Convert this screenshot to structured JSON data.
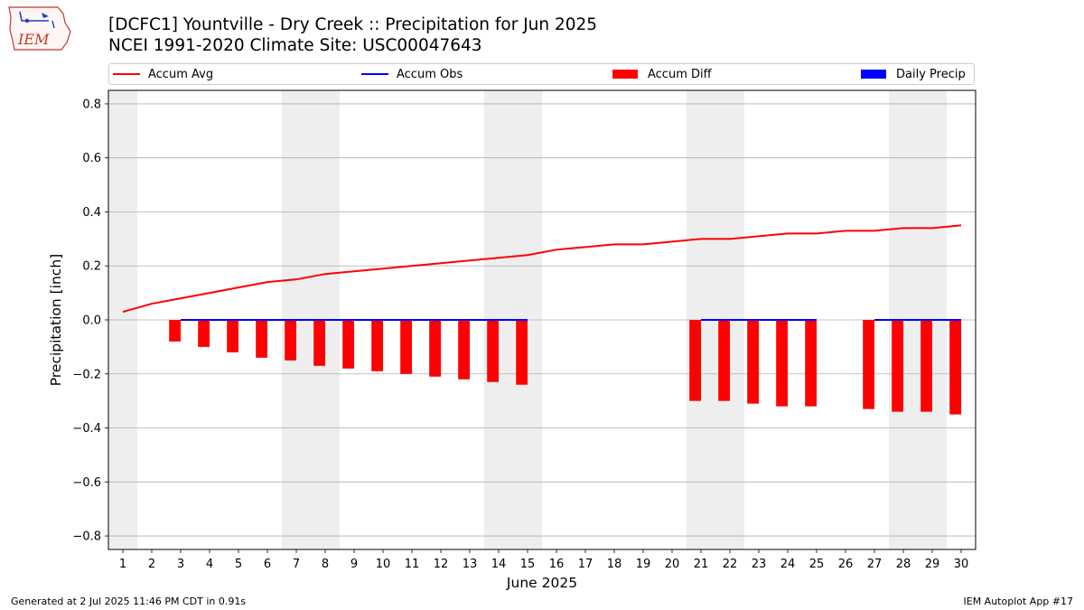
{
  "logo": {
    "text": "IEM"
  },
  "title": {
    "line1": "[DCFC1] Yountville - Dry Creek :: Precipitation for Jun 2025",
    "line2": "NCEI 1991-2020 Climate Site: USC00047643"
  },
  "legend": {
    "accum_avg": "Accum Avg",
    "accum_obs": "Accum Obs",
    "accum_diff": "Accum Diff",
    "daily_precip": "Daily Precip"
  },
  "footer": {
    "left": "Generated at 2 Jul 2025 11:46 PM CDT in 0.91s",
    "right": "IEM Autoplot App #17"
  },
  "colors": {
    "accum_avg": "#ff0000",
    "accum_obs": "#0000ff",
    "accum_diff": "#ff0000",
    "daily_precip": "#0000ff",
    "weekend_band": "#eeeeee",
    "grid": "#b0b0b0"
  },
  "chart_data": {
    "type": "bar",
    "xlabel": "June 2025",
    "ylabel": "Precipitation [inch]",
    "xlim": [
      0.5,
      30.5
    ],
    "ylim": [
      -0.85,
      0.85
    ],
    "yticks": [
      -0.8,
      -0.6,
      -0.4,
      -0.2,
      0.0,
      0.2,
      0.4,
      0.6,
      0.8
    ],
    "ytick_labels": [
      "−0.8",
      "−0.6",
      "−0.4",
      "−0.2",
      "0.0",
      "0.2",
      "0.4",
      "0.6",
      "0.8"
    ],
    "days": [
      1,
      2,
      3,
      4,
      5,
      6,
      7,
      8,
      9,
      10,
      11,
      12,
      13,
      14,
      15,
      16,
      17,
      18,
      19,
      20,
      21,
      22,
      23,
      24,
      25,
      26,
      27,
      28,
      29,
      30
    ],
    "grid": true,
    "legend_position": "top",
    "weekend_days": [
      1,
      7,
      8,
      14,
      15,
      21,
      22,
      28,
      29
    ],
    "series": [
      {
        "name": "Accum Avg",
        "kind": "line",
        "x": [
          1,
          2,
          3,
          4,
          5,
          6,
          7,
          8,
          9,
          10,
          11,
          12,
          13,
          14,
          15,
          16,
          17,
          18,
          19,
          20,
          21,
          22,
          23,
          24,
          25,
          26,
          27,
          28,
          29,
          30
        ],
        "values": [
          0.03,
          0.06,
          0.08,
          0.1,
          0.12,
          0.14,
          0.15,
          0.17,
          0.18,
          0.19,
          0.2,
          0.21,
          0.22,
          0.23,
          0.24,
          0.26,
          0.27,
          0.28,
          0.28,
          0.29,
          0.3,
          0.3,
          0.31,
          0.32,
          0.32,
          0.33,
          0.33,
          0.34,
          0.34,
          0.35
        ]
      },
      {
        "name": "Accum Obs",
        "kind": "line",
        "segments": [
          {
            "x": [
              3,
              4,
              5,
              6,
              7,
              8,
              9,
              10,
              11,
              12,
              13,
              14,
              15
            ],
            "values": [
              0,
              0,
              0,
              0,
              0,
              0,
              0,
              0,
              0,
              0,
              0,
              0,
              0
            ]
          },
          {
            "x": [
              21,
              22,
              23,
              24,
              25
            ],
            "values": [
              0,
              0,
              0,
              0,
              0
            ]
          },
          {
            "x": [
              27,
              28,
              29,
              30
            ],
            "values": [
              0,
              0,
              0,
              0
            ]
          }
        ]
      },
      {
        "name": "Accum Diff",
        "kind": "bar",
        "x": [
          3,
          4,
          5,
          6,
          7,
          8,
          9,
          10,
          11,
          12,
          13,
          14,
          15,
          21,
          22,
          23,
          24,
          25,
          27,
          28,
          29,
          30
        ],
        "values": [
          -0.08,
          -0.1,
          -0.12,
          -0.14,
          -0.15,
          -0.17,
          -0.18,
          -0.19,
          -0.2,
          -0.21,
          -0.22,
          -0.23,
          -0.24,
          -0.3,
          -0.3,
          -0.31,
          -0.32,
          -0.32,
          -0.33,
          -0.34,
          -0.34,
          -0.35
        ]
      },
      {
        "name": "Daily Precip",
        "kind": "bar",
        "x": [],
        "values": []
      }
    ]
  }
}
